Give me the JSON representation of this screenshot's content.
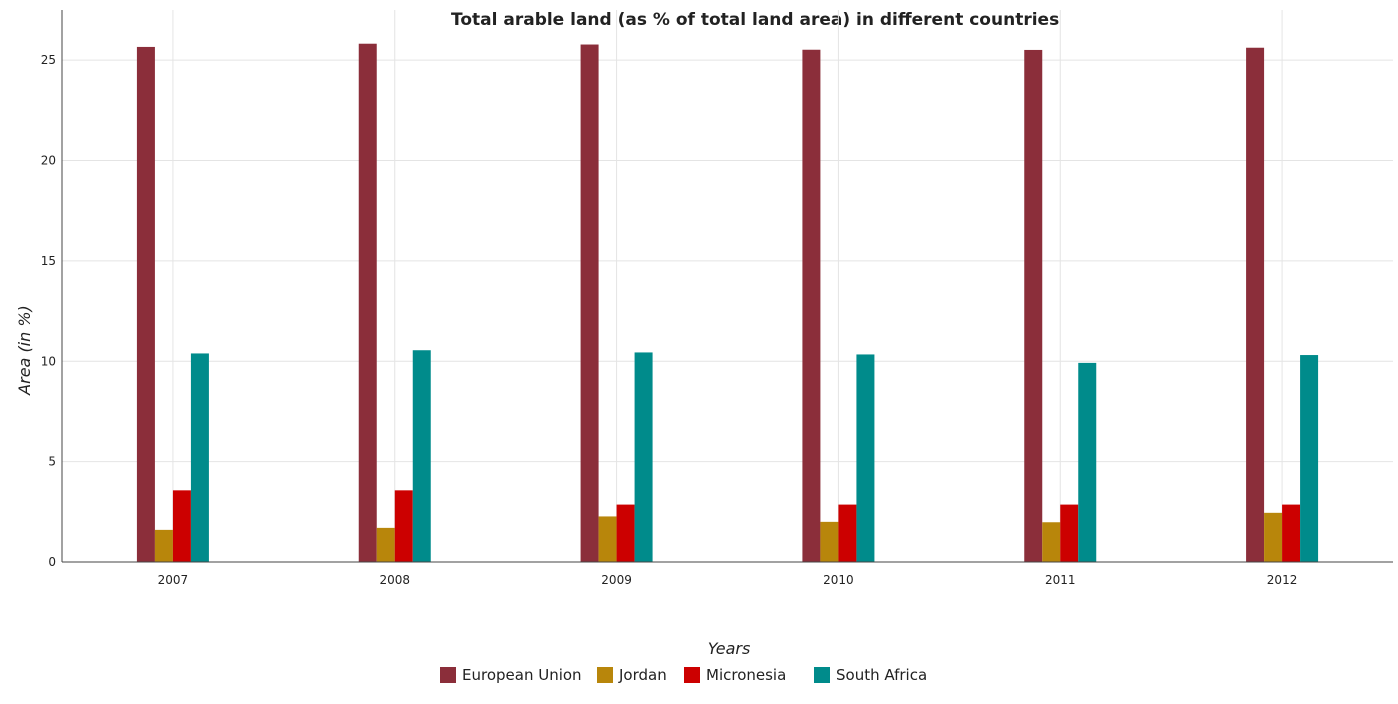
{
  "chart_data": {
    "type": "bar",
    "title": "Total arable land (as % of total land area) in different countries",
    "xlabel": "Years",
    "ylabel": "Area (in %)",
    "categories": [
      "2007",
      "2008",
      "2009",
      "2010",
      "2011",
      "2012"
    ],
    "ylim": [
      0,
      27.5
    ],
    "yticks": [
      0,
      5,
      10,
      15,
      20,
      25
    ],
    "grid": true,
    "legend_position": "bottom",
    "series": [
      {
        "name": "European Union",
        "color": "#8B2E3A",
        "values": [
          25.66,
          25.82,
          25.78,
          25.52,
          25.51,
          25.62
        ]
      },
      {
        "name": "Jordan",
        "color": "#B8860B",
        "values": [
          1.6,
          1.7,
          2.27,
          2.0,
          1.98,
          2.45
        ]
      },
      {
        "name": "Micronesia",
        "color": "#CC0000",
        "values": [
          3.57,
          3.57,
          2.86,
          2.86,
          2.86,
          2.86
        ]
      },
      {
        "name": "South Africa",
        "color": "#008B8B",
        "values": [
          10.39,
          10.55,
          10.44,
          10.34,
          9.92,
          10.31
        ]
      }
    ]
  }
}
